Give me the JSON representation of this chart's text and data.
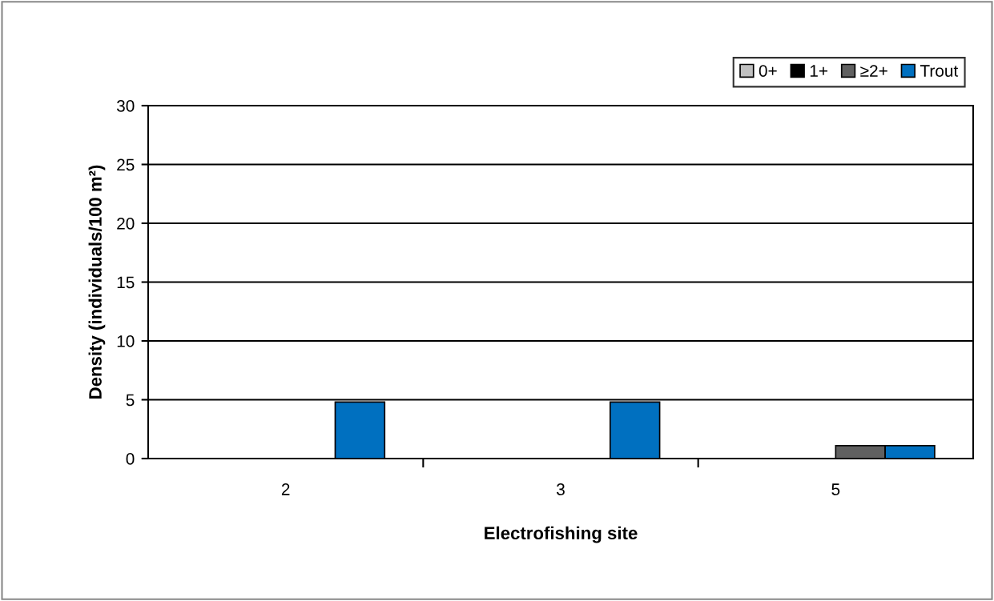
{
  "chart_data": {
    "type": "bar",
    "xlabel": "Electrofishing site",
    "ylabel": "Density (individuals/100 m²)",
    "categories": [
      "2",
      "3",
      "5"
    ],
    "series": [
      {
        "name": "0+",
        "color": "#c0c0c0",
        "values": [
          0,
          0,
          0
        ]
      },
      {
        "name": "1+",
        "color": "#000000",
        "values": [
          0,
          0,
          0
        ]
      },
      {
        "name": "≥2+",
        "color": "#606060",
        "values": [
          0,
          0,
          1.1
        ]
      },
      {
        "name": "Trout",
        "color": "#0070c0",
        "values": [
          4.8,
          4.8,
          1.1
        ]
      }
    ],
    "ylim": [
      0,
      30
    ],
    "yticks": [
      0,
      5,
      10,
      15,
      20,
      25,
      30
    ],
    "grid": "y",
    "legend": "top right"
  }
}
